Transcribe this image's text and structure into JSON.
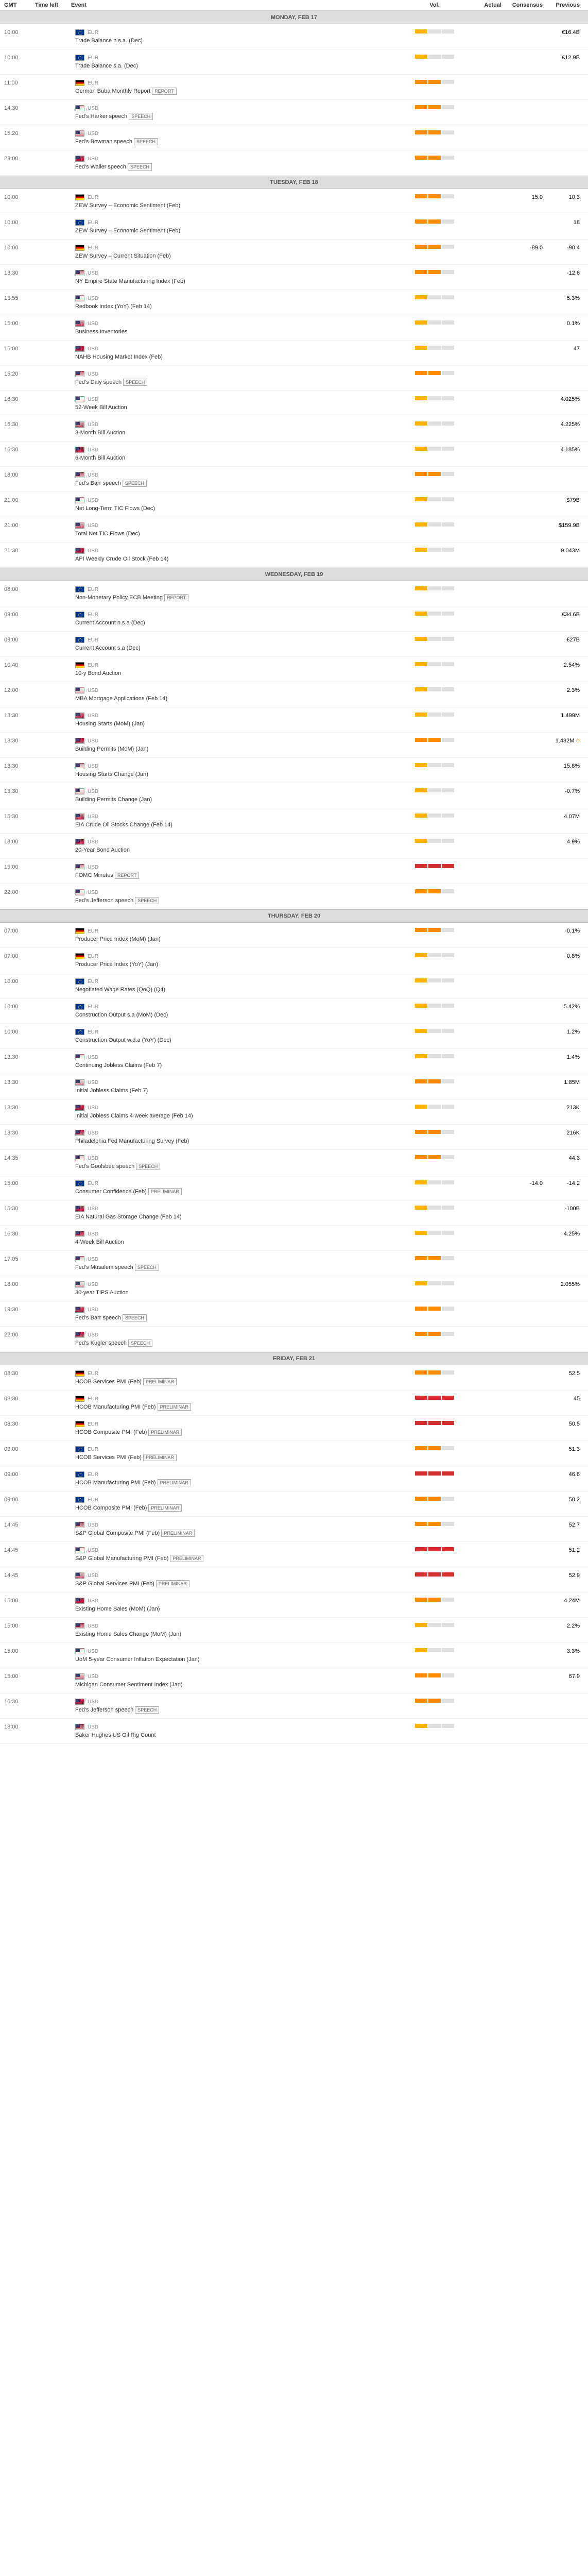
{
  "columns": {
    "gmt": "GMT",
    "timeleft": "Time left",
    "event": "Event",
    "vol": "Vol.",
    "actual": "Actual",
    "consensus": "Consensus",
    "previous": "Previous"
  },
  "tags": {
    "report": "REPORT",
    "speech": "SPEECH",
    "preliminary": "PRELIMINAR"
  },
  "days": [
    {
      "header": "MONDAY, FEB 17",
      "rows": [
        {
          "gmt": "10:00",
          "flag": "eur",
          "cur": "EUR",
          "name": "Trade Balance n.s.a. (Dec)",
          "vol": 1,
          "previous": "€16.4B"
        },
        {
          "gmt": "10:00",
          "flag": "eur",
          "cur": "EUR",
          "name": "Trade Balance s.a. (Dec)",
          "vol": 1,
          "previous": "€12.9B"
        },
        {
          "gmt": "11:00",
          "flag": "deu",
          "cur": "EUR",
          "name": "German Buba Monthly Report",
          "tag": "report",
          "vol": 2
        },
        {
          "gmt": "14:30",
          "flag": "usd",
          "cur": "USD",
          "name": "Fed's Harker speech",
          "tag": "speech",
          "vol": 2
        },
        {
          "gmt": "15:20",
          "flag": "usd",
          "cur": "USD",
          "name": "Fed's Bowman speech",
          "tag": "speech",
          "vol": 2
        },
        {
          "gmt": "23:00",
          "flag": "usd",
          "cur": "USD",
          "name": "Fed's Waller speech",
          "tag": "speech",
          "vol": 2
        }
      ]
    },
    {
      "header": "TUESDAY, FEB 18",
      "rows": [
        {
          "gmt": "10:00",
          "flag": "deu",
          "cur": "EUR",
          "name": "ZEW Survey – Economic Sentiment (Feb)",
          "vol": 2,
          "consensus": "15.0",
          "previous": "10.3"
        },
        {
          "gmt": "10:00",
          "flag": "eur",
          "cur": "EUR",
          "name": "ZEW Survey – Economic Sentiment (Feb)",
          "vol": 2,
          "previous": "18"
        },
        {
          "gmt": "10:00",
          "flag": "deu",
          "cur": "EUR",
          "name": "ZEW Survey – Current Situation (Feb)",
          "vol": 2,
          "consensus": "-89.0",
          "previous": "-90.4"
        },
        {
          "gmt": "13:30",
          "flag": "usd",
          "cur": "USD",
          "name": "NY Empire State Manufacturing Index (Feb)",
          "vol": 2,
          "previous": "-12.6"
        },
        {
          "gmt": "13:55",
          "flag": "usd",
          "cur": "USD",
          "name": "Redbook Index (YoY) (Feb 14)",
          "vol": 1,
          "previous": "5.3%"
        },
        {
          "gmt": "15:00",
          "flag": "usd",
          "cur": "USD",
          "name": "Business Inventories",
          "vol": 1,
          "previous": "0.1%"
        },
        {
          "gmt": "15:00",
          "flag": "usd",
          "cur": "USD",
          "name": "NAHB Housing Market Index (Feb)",
          "vol": 1,
          "previous": "47"
        },
        {
          "gmt": "15:20",
          "flag": "usd",
          "cur": "USD",
          "name": "Fed's Daly speech",
          "tag": "speech",
          "vol": 2
        },
        {
          "gmt": "16:30",
          "flag": "usd",
          "cur": "USD",
          "name": "52-Week Bill Auction",
          "vol": 1,
          "previous": "4.025%"
        },
        {
          "gmt": "16:30",
          "flag": "usd",
          "cur": "USD",
          "name": "3-Month Bill Auction",
          "vol": 1,
          "previous": "4.225%"
        },
        {
          "gmt": "16:30",
          "flag": "usd",
          "cur": "USD",
          "name": "6-Month Bill Auction",
          "vol": 1,
          "previous": "4.185%"
        },
        {
          "gmt": "18:00",
          "flag": "usd",
          "cur": "USD",
          "name": "Fed's Barr speech",
          "tag": "speech",
          "vol": 2
        },
        {
          "gmt": "21:00",
          "flag": "usd",
          "cur": "USD",
          "name": "Net Long-Term TIC Flows (Dec)",
          "vol": 1,
          "previous": "$79B"
        },
        {
          "gmt": "21:00",
          "flag": "usd",
          "cur": "USD",
          "name": "Total Net TIC Flows (Dec)",
          "vol": 1,
          "previous": "$159.9B"
        },
        {
          "gmt": "21:30",
          "flag": "usd",
          "cur": "USD",
          "name": "API Weekly Crude Oil Stock (Feb 14)",
          "vol": 1,
          "previous": "9.043M"
        }
      ]
    },
    {
      "header": "WEDNESDAY, FEB 19",
      "rows": [
        {
          "gmt": "08:00",
          "flag": "eur",
          "cur": "EUR",
          "name": "Non-Monetary Policy ECB Meeting",
          "tag": "report",
          "vol": 1
        },
        {
          "gmt": "09:00",
          "flag": "eur",
          "cur": "EUR",
          "name": "Current Account n.s.a (Dec)",
          "vol": 1,
          "previous": "€34.6B"
        },
        {
          "gmt": "09:00",
          "flag": "eur",
          "cur": "EUR",
          "name": "Current Account s.a (Dec)",
          "vol": 1,
          "previous": "€27B"
        },
        {
          "gmt": "10:40",
          "flag": "deu",
          "cur": "EUR",
          "name": "10-y Bond Auction",
          "vol": 1,
          "previous": "2.54%"
        },
        {
          "gmt": "12:00",
          "flag": "usd",
          "cur": "USD",
          "name": "MBA Mortgage Applications (Feb 14)",
          "vol": 1,
          "previous": "2.3%"
        },
        {
          "gmt": "13:30",
          "flag": "usd",
          "cur": "USD",
          "name": "Housing Starts (MoM) (Jan)",
          "vol": 1,
          "previous": "1.499M"
        },
        {
          "gmt": "13:30",
          "flag": "usd",
          "cur": "USD",
          "name": "Building Permits (MoM) (Jan)",
          "vol": 2,
          "previous": "1.482M",
          "clock": true
        },
        {
          "gmt": "13:30",
          "flag": "usd",
          "cur": "USD",
          "name": "Housing Starts Change (Jan)",
          "vol": 1,
          "previous": "15.8%"
        },
        {
          "gmt": "13:30",
          "flag": "usd",
          "cur": "USD",
          "name": "Building Permits Change (Jan)",
          "vol": 1,
          "previous": "-0.7%"
        },
        {
          "gmt": "15:30",
          "flag": "usd",
          "cur": "USD",
          "name": "EIA Crude Oil Stocks Change (Feb 14)",
          "vol": 1,
          "previous": "4.07M"
        },
        {
          "gmt": "18:00",
          "flag": "usd",
          "cur": "USD",
          "name": "20-Year Bond Auction",
          "vol": 1,
          "previous": "4.9%"
        },
        {
          "gmt": "19:00",
          "flag": "usd",
          "cur": "USD",
          "name": "FOMC Minutes",
          "tag": "report",
          "vol": 3
        },
        {
          "gmt": "22:00",
          "flag": "usd",
          "cur": "USD",
          "name": "Fed's Jefferson speech",
          "tag": "speech",
          "vol": 2
        }
      ]
    },
    {
      "header": "THURSDAY, FEB 20",
      "rows": [
        {
          "gmt": "07:00",
          "flag": "deu",
          "cur": "EUR",
          "name": "Producer Price Index (MoM) (Jan)",
          "vol": 2,
          "previous": "-0.1%"
        },
        {
          "gmt": "07:00",
          "flag": "deu",
          "cur": "EUR",
          "name": "Producer Price Index (YoY) (Jan)",
          "vol": 1,
          "previous": "0.8%"
        },
        {
          "gmt": "10:00",
          "flag": "eur",
          "cur": "EUR",
          "name": "Negotiated Wage Rates (QoQ) (Q4)",
          "vol": 1
        },
        {
          "gmt": "10:00",
          "flag": "eur",
          "cur": "EUR",
          "name": "Construction Output s.a (MoM) (Dec)",
          "vol": 1,
          "previous": "5.42%"
        },
        {
          "gmt": "10:00",
          "flag": "eur",
          "cur": "EUR",
          "name": "Construction Output w.d.a (YoY) (Dec)",
          "vol": 1,
          "previous": "1.2%"
        },
        {
          "gmt": "13:30",
          "flag": "usd",
          "cur": "USD",
          "name": "Continuing Jobless Claims (Feb 7)",
          "vol": 1,
          "previous": "1.4%"
        },
        {
          "gmt": "13:30",
          "flag": "usd",
          "cur": "USD",
          "name": "Initial Jobless Claims (Feb 7)",
          "vol": 2,
          "previous": "1.85M"
        },
        {
          "gmt": "13:30",
          "flag": "usd",
          "cur": "USD",
          "name": "Initial Jobless Claims 4-week average (Feb 14)",
          "vol": 1,
          "previous": "213K"
        },
        {
          "gmt": "13:30",
          "flag": "usd",
          "cur": "USD",
          "name": "Philadelphia Fed Manufacturing Survey (Feb)",
          "vol": 2,
          "previous": "216K"
        },
        {
          "gmt": "14:35",
          "flag": "usd",
          "cur": "USD",
          "name": "Fed's Goolsbee speech",
          "tag": "speech",
          "vol": 2,
          "previous": "44.3"
        },
        {
          "gmt": "15:00",
          "flag": "eur",
          "cur": "EUR",
          "name": "Consumer Confidence (Feb)",
          "tag": "preliminary",
          "vol": 1,
          "consensus": "-14.0",
          "previous": "-14.2"
        },
        {
          "gmt": "15:30",
          "flag": "usd",
          "cur": "USD",
          "name": "EIA Natural Gas Storage Change (Feb 14)",
          "vol": 1,
          "previous": "-100B"
        },
        {
          "gmt": "16:30",
          "flag": "usd",
          "cur": "USD",
          "name": "4-Week Bill Auction",
          "vol": 1,
          "previous": "4.25%"
        },
        {
          "gmt": "17:05",
          "flag": "usd",
          "cur": "USD",
          "name": "Fed's Musalem speech",
          "tag": "speech",
          "vol": 2
        },
        {
          "gmt": "18:00",
          "flag": "usd",
          "cur": "USD",
          "name": "30-year TIPS Auction",
          "vol": 1,
          "previous": "2.055%"
        },
        {
          "gmt": "19:30",
          "flag": "usd",
          "cur": "USD",
          "name": "Fed's Barr speech",
          "tag": "speech",
          "vol": 2
        },
        {
          "gmt": "22:00",
          "flag": "usd",
          "cur": "USD",
          "name": "Fed's Kugler speech",
          "tag": "speech",
          "vol": 2
        }
      ]
    },
    {
      "header": "FRIDAY, FEB 21",
      "rows": [
        {
          "gmt": "08:30",
          "flag": "deu",
          "cur": "EUR",
          "name": "HCOB Services PMI (Feb)",
          "tag": "preliminary",
          "vol": 2,
          "previous": "52.5"
        },
        {
          "gmt": "08:30",
          "flag": "deu",
          "cur": "EUR",
          "name": "HCOB Manufacturing PMI (Feb)",
          "tag": "preliminary",
          "vol": 3,
          "previous": "45"
        },
        {
          "gmt": "08:30",
          "flag": "deu",
          "cur": "EUR",
          "name": "HCOB Composite PMI (Feb)",
          "tag": "preliminary",
          "vol": 3,
          "previous": "50.5"
        },
        {
          "gmt": "09:00",
          "flag": "eur",
          "cur": "EUR",
          "name": "HCOB Services PMI (Feb)",
          "tag": "preliminary",
          "vol": 2,
          "previous": "51.3"
        },
        {
          "gmt": "09:00",
          "flag": "eur",
          "cur": "EUR",
          "name": "HCOB Manufacturing PMI (Feb)",
          "tag": "preliminary",
          "vol": 3,
          "previous": "46.6"
        },
        {
          "gmt": "09:00",
          "flag": "eur",
          "cur": "EUR",
          "name": "HCOB Composite PMI (Feb)",
          "tag": "preliminary",
          "vol": 2,
          "previous": "50.2"
        },
        {
          "gmt": "14:45",
          "flag": "usd",
          "cur": "USD",
          "name": "S&P Global Composite PMI (Feb)",
          "tag": "preliminary",
          "vol": 2,
          "previous": "52.7"
        },
        {
          "gmt": "14:45",
          "flag": "usd",
          "cur": "USD",
          "name": "S&P Global Manufacturing PMI (Feb)",
          "tag": "preliminary",
          "vol": 3,
          "previous": "51.2"
        },
        {
          "gmt": "14:45",
          "flag": "usd",
          "cur": "USD",
          "name": "S&P Global Services PMI (Feb)",
          "tag": "preliminary",
          "vol": 3,
          "previous": "52.9"
        },
        {
          "gmt": "15:00",
          "flag": "usd",
          "cur": "USD",
          "name": "Existing Home Sales (MoM) (Jan)",
          "vol": 2,
          "previous": "4.24M"
        },
        {
          "gmt": "15:00",
          "flag": "usd",
          "cur": "USD",
          "name": "Existing Home Sales Change (MoM) (Jan)",
          "vol": 1,
          "previous": "2.2%"
        },
        {
          "gmt": "15:00",
          "flag": "usd",
          "cur": "USD",
          "name": "UoM 5-year Consumer Inflation Expectation (Jan)",
          "vol": 1,
          "previous": "3.3%"
        },
        {
          "gmt": "15:00",
          "flag": "usd",
          "cur": "USD",
          "name": "Michigan Consumer Sentiment Index (Jan)",
          "vol": 2,
          "previous": "67.9"
        },
        {
          "gmt": "16:30",
          "flag": "usd",
          "cur": "USD",
          "name": "Fed's Jefferson speech",
          "tag": "speech",
          "vol": 2
        },
        {
          "gmt": "18:00",
          "flag": "usd",
          "cur": "USD",
          "name": "Baker Hughes US Oil Rig Count",
          "vol": 1
        }
      ]
    }
  ]
}
